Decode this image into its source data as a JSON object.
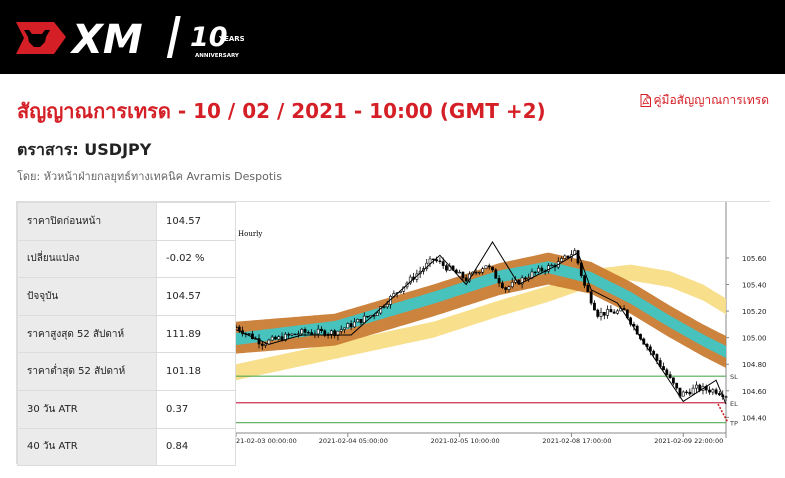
{
  "header": {
    "brand": "XM",
    "badge_number": "10",
    "badge_word": "YEARS",
    "badge_caption": "ANNIVERSARY"
  },
  "page": {
    "title": "สัญญาณการเทรด - 10 / 02 / 2021 - 10:00 (GMT +2)",
    "guide_link": "คู่มือสัญญาณการเทรด",
    "instrument": "ตราสาร: USDJPY",
    "author": "โดย: หัวหน้าฝ่ายกลยุทธ์ทางเทคนิค Avramis Despotis"
  },
  "stats": [
    {
      "label": "ราคาปิดก่อนหน้า",
      "value": "104.57"
    },
    {
      "label": "เปลี่ยนแปลง",
      "value": "-0.02 %"
    },
    {
      "label": "ปัจจุบัน",
      "value": "104.57"
    },
    {
      "label": "ราคาสูงสุด 52 สัปดาห์",
      "value": "111.89"
    },
    {
      "label": "ราคาต่ำสุด 52 สัปดาห์",
      "value": "101.18"
    },
    {
      "label": "30 วัน ATR",
      "value": "0.37"
    },
    {
      "label": "40 วัน ATR",
      "value": "0.84"
    }
  ],
  "colors": {
    "brand_red": "#d51f26",
    "band_teal": "#3cc8c8",
    "band_brown": "#c8782d",
    "band_yellow": "#f7dc82",
    "sl_line": "#55aa55",
    "el_line": "#cc3355"
  },
  "chart_data": {
    "type": "line",
    "timeframe_label": "Hourly",
    "ylim": [
      104.32,
      105.72
    ],
    "y_ticks": [
      105.6,
      105.4,
      105.2,
      105.0,
      104.8,
      104.6,
      104.4
    ],
    "y_tick_labels": [
      "105.60",
      "105.40",
      "105.20",
      "105.00",
      "104.80",
      "104.60",
      "104.40"
    ],
    "x_ticks": [
      {
        "i": 0,
        "label": "21-02-03 00:00:00"
      },
      {
        "i": 34,
        "label": "2021-02-04 05:00:00"
      },
      {
        "i": 68,
        "label": "2021-02-05 10:00:00"
      },
      {
        "i": 102,
        "label": "2021-02-08 17:00:00"
      },
      {
        "i": 136,
        "label": "2021-02-09 22:00:00"
      }
    ],
    "levels": [
      {
        "name": "SL",
        "value": 104.71
      },
      {
        "name": "EL",
        "value": 104.51
      },
      {
        "name": "TP",
        "value": 104.36
      }
    ],
    "n_points": 150,
    "close_keypoints": [
      [
        0,
        105.08
      ],
      [
        8,
        104.96
      ],
      [
        20,
        105.04
      ],
      [
        30,
        105.04
      ],
      [
        42,
        105.18
      ],
      [
        50,
        105.37
      ],
      [
        60,
        105.59
      ],
      [
        70,
        105.44
      ],
      [
        76,
        105.55
      ],
      [
        82,
        105.37
      ],
      [
        90,
        105.48
      ],
      [
        98,
        105.56
      ],
      [
        103,
        105.65
      ],
      [
        106,
        105.39
      ],
      [
        110,
        105.18
      ],
      [
        118,
        105.2
      ],
      [
        124,
        104.97
      ],
      [
        130,
        104.76
      ],
      [
        135,
        104.57
      ],
      [
        140,
        104.62
      ],
      [
        146,
        104.6
      ],
      [
        149,
        104.57
      ]
    ],
    "zigzag": [
      [
        0,
        105.06
      ],
      [
        10,
        104.95
      ],
      [
        20,
        105.02
      ],
      [
        35,
        105.02
      ],
      [
        62,
        105.62
      ],
      [
        70,
        105.4
      ],
      [
        78,
        105.72
      ],
      [
        86,
        105.4
      ],
      [
        98,
        105.55
      ],
      [
        104,
        105.64
      ],
      [
        108,
        105.36
      ],
      [
        116,
        105.26
      ],
      [
        136,
        104.52
      ],
      [
        146,
        104.68
      ],
      [
        150,
        104.5
      ]
    ],
    "bands": [
      {
        "name": "yellow",
        "mid": [
          [
            0,
            104.74
          ],
          [
            30,
            104.9
          ],
          [
            60,
            105.06
          ],
          [
            80,
            105.22
          ],
          [
            95,
            105.33
          ],
          [
            110,
            105.46
          ],
          [
            120,
            105.49
          ],
          [
            132,
            105.44
          ],
          [
            142,
            105.34
          ],
          [
            150,
            105.22
          ]
        ],
        "half_width": 0.06
      },
      {
        "name": "brown",
        "mid": [
          [
            0,
            105.0
          ],
          [
            30,
            105.06
          ],
          [
            60,
            105.28
          ],
          [
            80,
            105.44
          ],
          [
            95,
            105.52
          ],
          [
            108,
            105.45
          ],
          [
            120,
            105.3
          ],
          [
            132,
            105.12
          ],
          [
            142,
            104.98
          ],
          [
            150,
            104.88
          ]
        ],
        "half_width": 0.12
      },
      {
        "name": "teal",
        "mid": [
          [
            0,
            104.99
          ],
          [
            30,
            105.08
          ],
          [
            60,
            105.3
          ],
          [
            80,
            105.46
          ],
          [
            95,
            105.53
          ],
          [
            108,
            105.45
          ],
          [
            120,
            105.3
          ],
          [
            132,
            105.12
          ],
          [
            142,
            104.98
          ],
          [
            150,
            104.88
          ]
        ],
        "half_width": 0.045
      }
    ]
  }
}
